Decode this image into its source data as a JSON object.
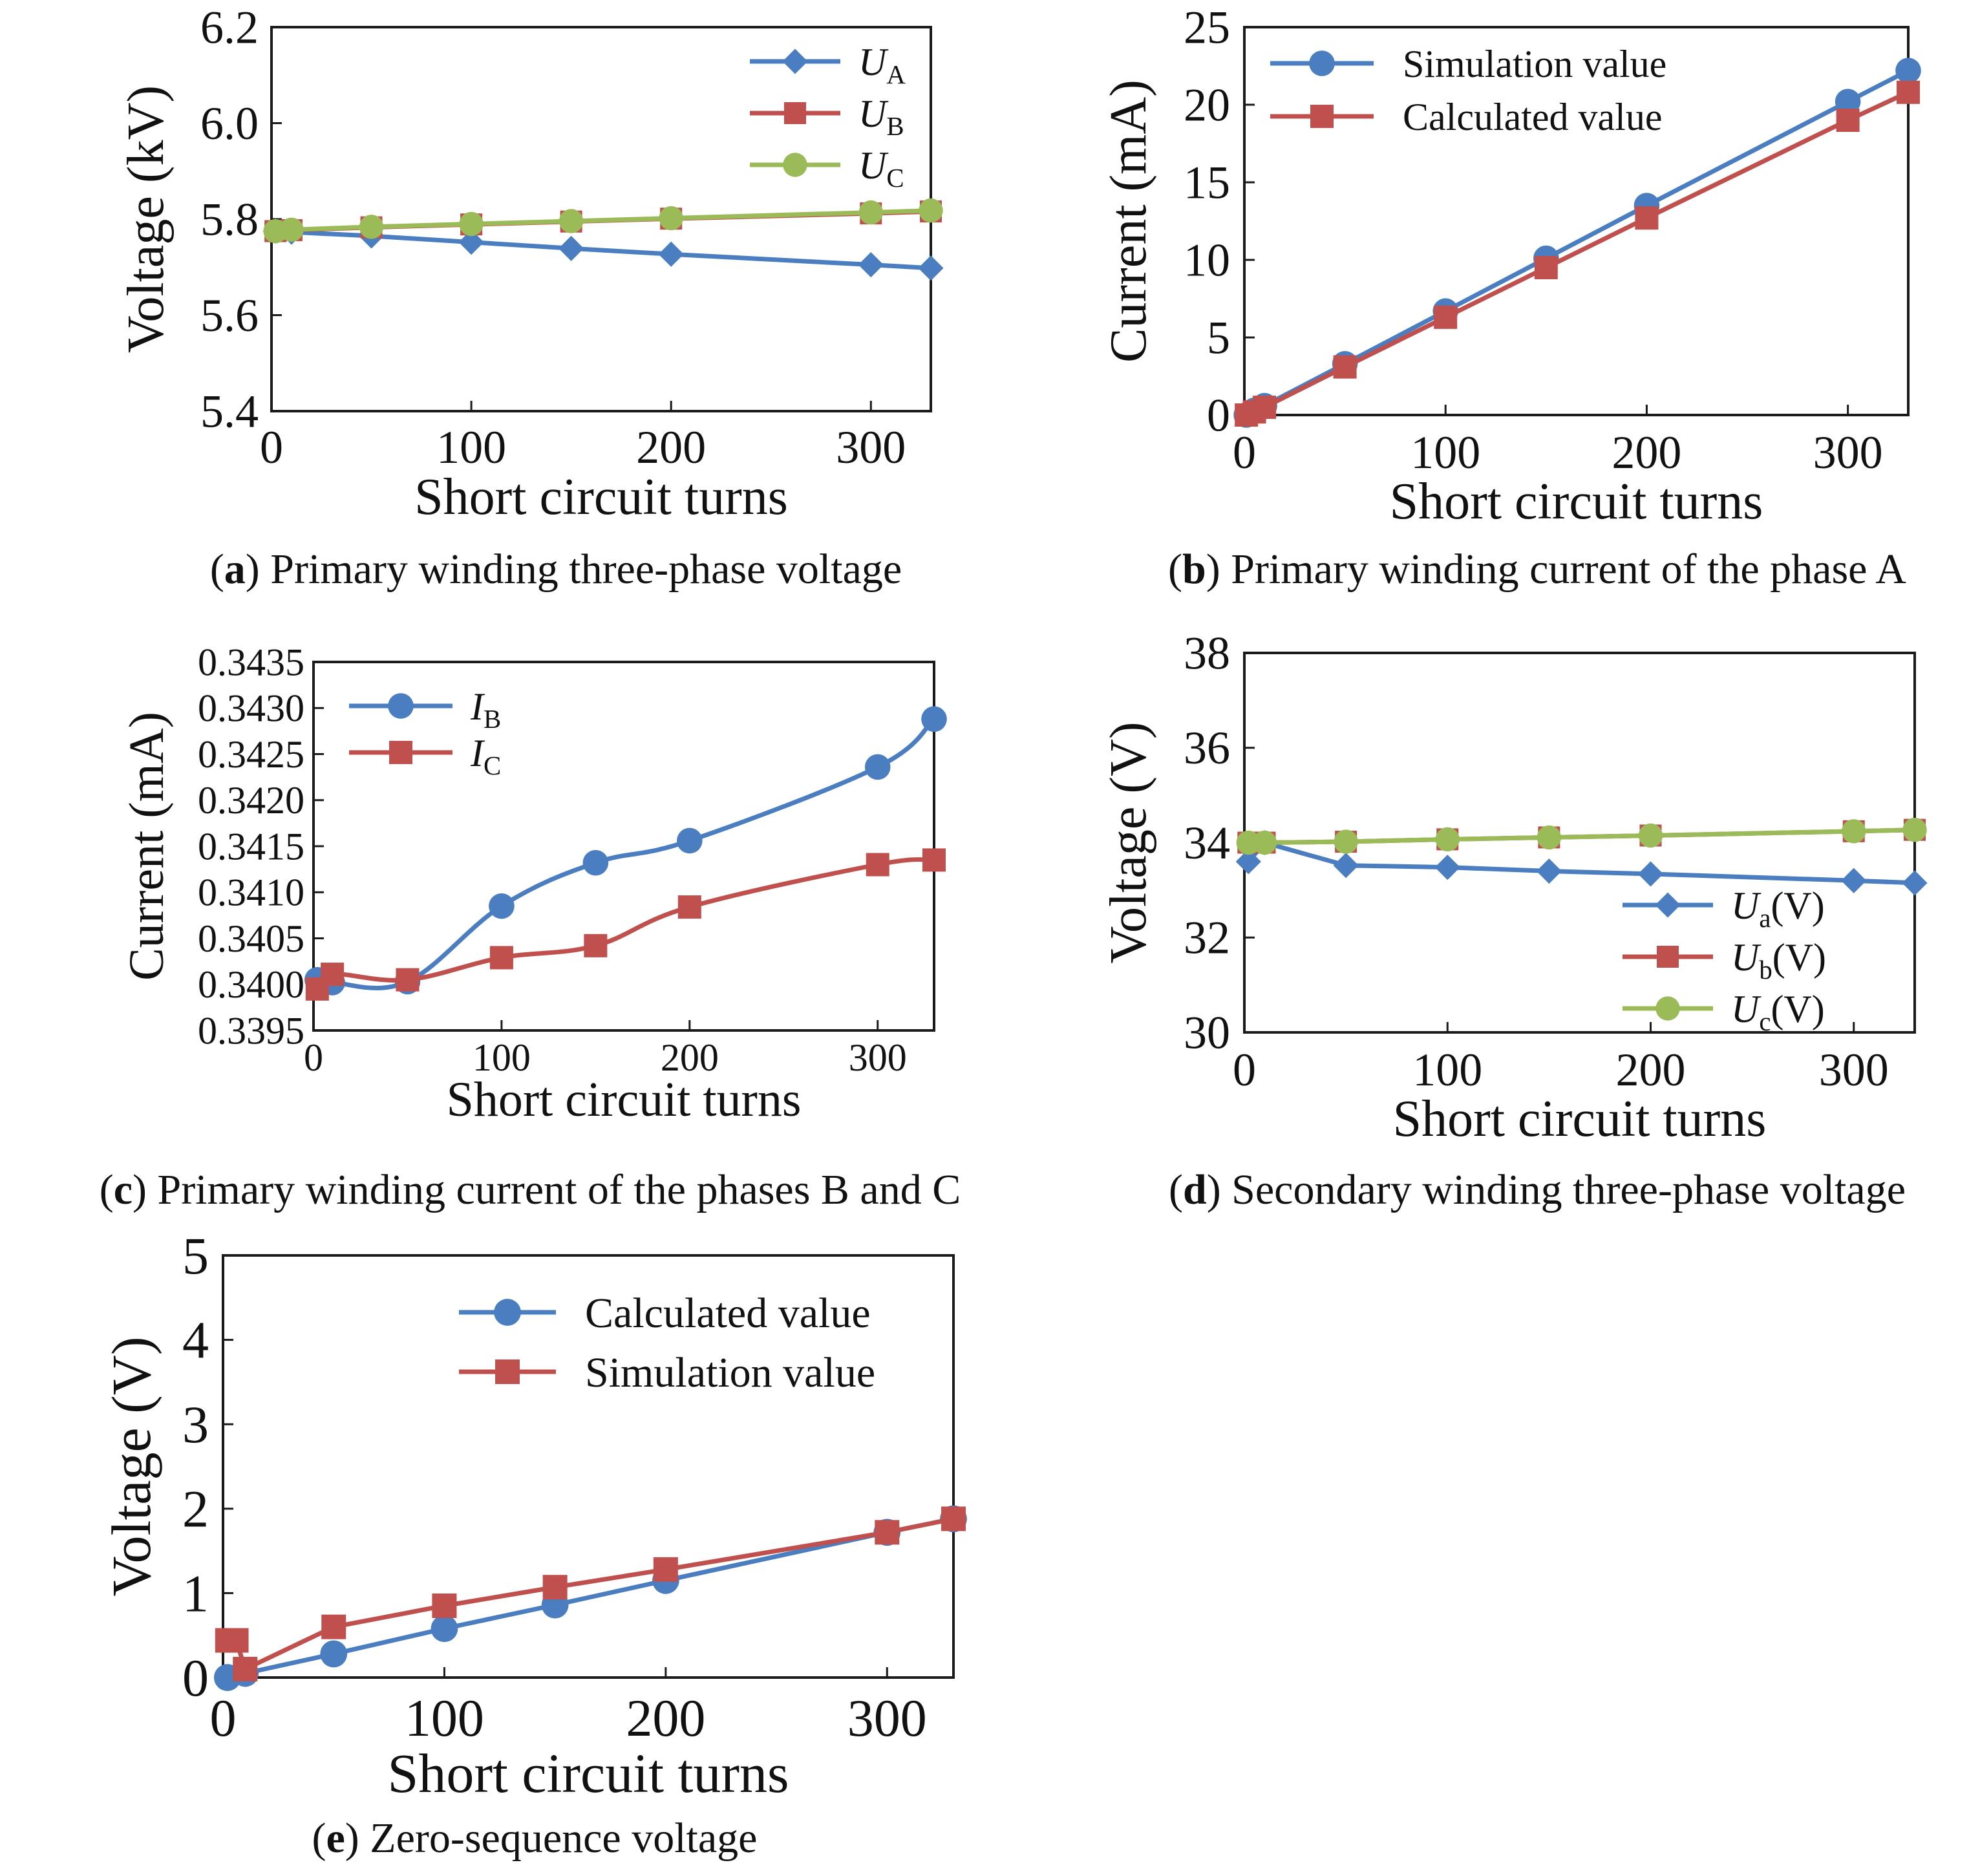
{
  "colors": {
    "blue": "#4a7ec0",
    "red": "#c0504d",
    "green": "#9bbb59"
  },
  "chart_data": [
    {
      "id": "a",
      "type": "line",
      "caption_letter": "a",
      "caption_text": " Primary winding three-phase voltage",
      "xlabel": "Short circuit turns",
      "ylabel": "Voltage (kV)",
      "xlim": [
        0,
        330
      ],
      "ylim": [
        5.4,
        6.2
      ],
      "xticks": [
        0,
        100,
        200,
        300
      ],
      "xtick_labels": [
        "0",
        "100",
        "200",
        "300"
      ],
      "yticks": [
        5.4,
        5.6,
        5.8,
        6.0,
        6.2
      ],
      "ytick_labels": [
        "5.4",
        "5.6",
        "5.8",
        "6.0",
        "6.2"
      ],
      "legend_position": "top-right",
      "series": [
        {
          "name_main": "U",
          "name_sub": "A",
          "color": "#4a7ec0",
          "marker": "diamond",
          "x": [
            2,
            10,
            50,
            100,
            150,
            200,
            300,
            330
          ],
          "y": [
            5.775,
            5.773,
            5.765,
            5.752,
            5.739,
            5.727,
            5.705,
            5.698
          ]
        },
        {
          "name_main": "U",
          "name_sub": "B",
          "color": "#c0504d",
          "marker": "square",
          "x": [
            2,
            10,
            50,
            100,
            150,
            200,
            300,
            330
          ],
          "y": [
            5.775,
            5.777,
            5.783,
            5.789,
            5.795,
            5.801,
            5.812,
            5.816
          ]
        },
        {
          "name_main": "U",
          "name_sub": "C",
          "color": "#9bbb59",
          "marker": "circle",
          "x": [
            2,
            10,
            50,
            100,
            150,
            200,
            300,
            330
          ],
          "y": [
            5.775,
            5.778,
            5.784,
            5.79,
            5.796,
            5.802,
            5.814,
            5.818
          ]
        }
      ]
    },
    {
      "id": "b",
      "type": "line",
      "caption_letter": "b",
      "caption_text": " Primary winding current of the phase A",
      "xlabel": "Short circuit turns",
      "ylabel": "Current (mA)",
      "xlim": [
        0,
        330
      ],
      "ylim": [
        0,
        25
      ],
      "xticks": [
        0,
        100,
        200,
        300
      ],
      "xtick_labels": [
        "0",
        "100",
        "200",
        "300"
      ],
      "yticks": [
        0,
        5,
        10,
        15,
        20,
        25
      ],
      "ytick_labels": [
        "0",
        "5",
        "10",
        "15",
        "20",
        "25"
      ],
      "legend_position": "top-left",
      "series": [
        {
          "name_main": "Simulation value",
          "name_sub": "",
          "color": "#4a7ec0",
          "marker": "circle",
          "x": [
            1,
            5,
            10,
            50,
            100,
            150,
            200,
            300,
            330
          ],
          "y": [
            0,
            0.3,
            0.6,
            3.3,
            6.7,
            10.1,
            13.5,
            20.2,
            22.2
          ]
        },
        {
          "name_main": "Calculated value",
          "name_sub": "",
          "color": "#c0504d",
          "marker": "square",
          "x": [
            1,
            5,
            10,
            50,
            100,
            150,
            200,
            300,
            330
          ],
          "y": [
            0,
            0.2,
            0.5,
            3.1,
            6.3,
            9.5,
            12.7,
            19.0,
            20.8
          ]
        }
      ]
    },
    {
      "id": "c",
      "type": "line",
      "smooth": true,
      "caption_letter": "c",
      "caption_text": " Primary winding current of the phases B and C",
      "xlabel": "Short circuit turns",
      "ylabel": "Current (mA)",
      "xlim": [
        0,
        330
      ],
      "ylim": [
        0.3395,
        0.3435
      ],
      "xticks": [
        0,
        100,
        200,
        300
      ],
      "xtick_labels": [
        "0",
        "100",
        "200",
        "300"
      ],
      "yticks": [
        0.3395,
        0.34,
        0.3405,
        0.341,
        0.3415,
        0.342,
        0.3425,
        0.343,
        0.3435
      ],
      "ytick_labels": [
        "0.3395",
        "0.3400",
        "0.3405",
        "0.3410",
        "0.3415",
        "0.3420",
        "0.3425",
        "0.3430",
        "0.3435"
      ],
      "legend_position": "top-left",
      "series": [
        {
          "name_main": "I",
          "name_sub": "B",
          "color": "#4a7ec0",
          "marker": "circle",
          "x": [
            2,
            10,
            50,
            100,
            150,
            200,
            300,
            330
          ],
          "y": [
            0.34005,
            0.34002,
            0.34003,
            0.34085,
            0.34132,
            0.34156,
            0.34236,
            0.34288
          ]
        },
        {
          "name_main": "I",
          "name_sub": "C",
          "color": "#c0504d",
          "marker": "square",
          "x": [
            2,
            10,
            50,
            100,
            150,
            200,
            300,
            330
          ],
          "y": [
            0.33995,
            0.34011,
            0.34005,
            0.34029,
            0.34042,
            0.34084,
            0.3413,
            0.34135
          ]
        }
      ]
    },
    {
      "id": "d",
      "type": "line",
      "caption_letter": "d",
      "caption_text": " Secondary winding three-phase voltage",
      "xlabel": "Short circuit turns",
      "ylabel": "Voltage (V)",
      "xlim": [
        0,
        330
      ],
      "ylim": [
        30,
        38
      ],
      "xticks": [
        0,
        100,
        200,
        300
      ],
      "xtick_labels": [
        "0",
        "100",
        "200",
        "300"
      ],
      "yticks": [
        30,
        32,
        34,
        36,
        38
      ],
      "ytick_labels": [
        "30",
        "32",
        "34",
        "36",
        "38"
      ],
      "legend_position": "bottom-right",
      "series": [
        {
          "name_main": "U",
          "name_sub": "a",
          "name_suffix": "(V)",
          "color": "#4a7ec0",
          "marker": "diamond",
          "x": [
            2,
            10,
            50,
            100,
            150,
            200,
            300,
            330
          ],
          "y": [
            33.6,
            34.0,
            33.52,
            33.48,
            33.4,
            33.34,
            33.2,
            33.15
          ]
        },
        {
          "name_main": "U",
          "name_sub": "b",
          "name_suffix": "(V)",
          "color": "#c0504d",
          "marker": "square",
          "x": [
            2,
            10,
            50,
            100,
            150,
            200,
            300,
            330
          ],
          "y": [
            34.0,
            34.0,
            34.02,
            34.07,
            34.11,
            34.15,
            34.24,
            34.27
          ]
        },
        {
          "name_main": "U",
          "name_sub": "c",
          "name_suffix": "(V)",
          "color": "#9bbb59",
          "marker": "circle",
          "x": [
            2,
            10,
            50,
            100,
            150,
            200,
            300,
            330
          ],
          "y": [
            34.0,
            34.0,
            34.02,
            34.07,
            34.11,
            34.15,
            34.24,
            34.27
          ]
        }
      ]
    },
    {
      "id": "e",
      "type": "line",
      "caption_letter": "e",
      "caption_text": " Zero-sequence voltage",
      "xlabel": "Short circuit turns",
      "ylabel": "Voltage (V)",
      "xlim": [
        0,
        330
      ],
      "ylim": [
        0,
        5
      ],
      "xticks": [
        0,
        100,
        200,
        300
      ],
      "xtick_labels": [
        "0",
        "100",
        "200",
        "300"
      ],
      "yticks": [
        0,
        1,
        2,
        3,
        4,
        5
      ],
      "ytick_labels": [
        "0",
        "1",
        "2",
        "3",
        "4",
        "5"
      ],
      "legend_position": "top-right",
      "series": [
        {
          "name_main": "Calculated value",
          "name_sub": "",
          "color": "#4a7ec0",
          "marker": "circle",
          "x": [
            2,
            10,
            50,
            100,
            150,
            200,
            300,
            330
          ],
          "y": [
            0.0,
            0.05,
            0.28,
            0.58,
            0.86,
            1.15,
            1.72,
            1.88
          ]
        },
        {
          "name_main": "Simulation value",
          "name_sub": "",
          "color": "#c0504d",
          "marker": "square",
          "x": [
            2,
            6,
            10,
            50,
            100,
            150,
            200,
            300,
            330
          ],
          "y": [
            0.44,
            0.44,
            0.1,
            0.6,
            0.85,
            1.07,
            1.28,
            1.72,
            1.88
          ]
        }
      ]
    }
  ]
}
